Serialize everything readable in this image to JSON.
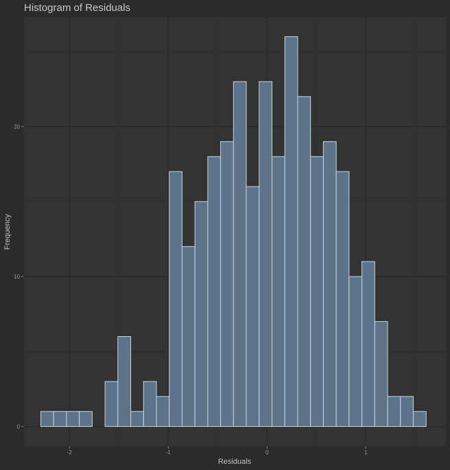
{
  "chart_data": {
    "type": "bar",
    "title": "Histogram of Residuals",
    "xlabel": "Residuals",
    "ylabel": "Frequency",
    "bin_start": -2.29,
    "bin_width": 0.13,
    "values": [
      1,
      1,
      1,
      1,
      0,
      3,
      6,
      1,
      3,
      2,
      17,
      12,
      15,
      18,
      19,
      23,
      16,
      23,
      18,
      26,
      22,
      18,
      19,
      17,
      10,
      11,
      7,
      2,
      2,
      1
    ],
    "xlim": [
      -2.46,
      1.81
    ],
    "ylim": [
      -1.3,
      27.3
    ],
    "x_ticks": [
      {
        "value": -2,
        "label": "-2"
      },
      {
        "value": -1,
        "label": "-1"
      },
      {
        "value": 0,
        "label": "0"
      },
      {
        "value": 1,
        "label": "1"
      }
    ],
    "y_ticks": [
      {
        "value": 0,
        "label": "0"
      },
      {
        "value": 10,
        "label": "10"
      },
      {
        "value": 20,
        "label": "20"
      }
    ],
    "grid": true,
    "colors": {
      "background": "#2b2b2b",
      "panel": "#333333",
      "grid_major": "#262626",
      "grid_minor": "#2d2d2d",
      "bar_fill": "#5c7389",
      "bar_stroke": "#cdd6de"
    }
  }
}
